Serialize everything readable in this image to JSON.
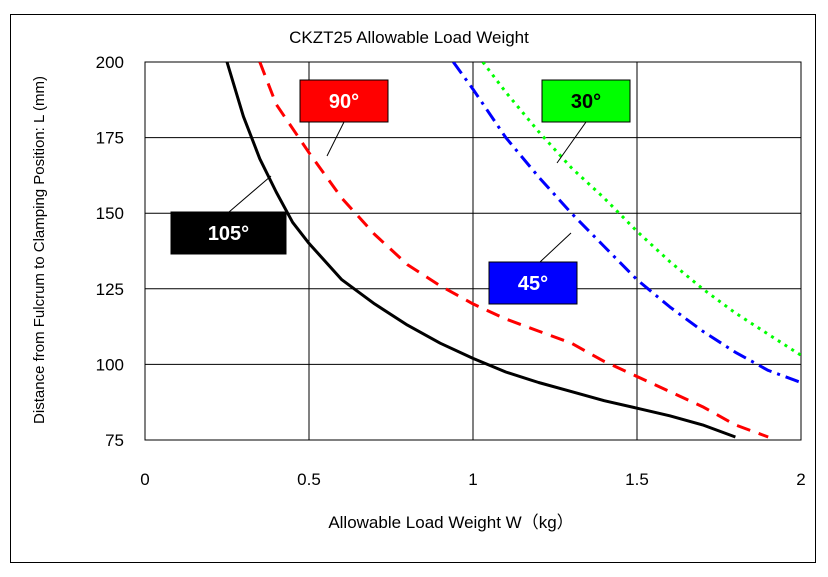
{
  "chart_data": {
    "type": "line",
    "title": "CKZT25  Allowable Load Weight",
    "xlabel": "Allowable Load Weight  W（kg）",
    "ylabel": "Distance from Fulcrum to Clamping Position: L (mm)",
    "xlim": [
      0,
      2
    ],
    "ylim": [
      75,
      200
    ],
    "x_ticks": [
      "0",
      "0.5",
      "1",
      "1.5",
      "2"
    ],
    "y_ticks": [
      "75",
      "100",
      "125",
      "150",
      "175",
      "200"
    ],
    "grid": true,
    "series": [
      {
        "name": "105°",
        "color": "#000000",
        "style": "solid",
        "label_bg": "#000000",
        "label_fg": "#ffffff",
        "points": [
          [
            0.25,
            200
          ],
          [
            0.3,
            182
          ],
          [
            0.35,
            168
          ],
          [
            0.4,
            157
          ],
          [
            0.45,
            147
          ],
          [
            0.5,
            140
          ],
          [
            0.6,
            128
          ],
          [
            0.7,
            120
          ],
          [
            0.8,
            113
          ],
          [
            0.9,
            107
          ],
          [
            1.0,
            102
          ],
          [
            1.1,
            97.5
          ],
          [
            1.2,
            94
          ],
          [
            1.3,
            91
          ],
          [
            1.4,
            88
          ],
          [
            1.5,
            85.5
          ],
          [
            1.6,
            83
          ],
          [
            1.7,
            80
          ],
          [
            1.8,
            76
          ]
        ]
      },
      {
        "name": "90°",
        "color": "#ff0000",
        "style": "dashed",
        "label_bg": "#ff0000",
        "label_fg": "#ffffff",
        "points": [
          [
            0.35,
            200
          ],
          [
            0.4,
            186
          ],
          [
            0.5,
            170
          ],
          [
            0.6,
            155
          ],
          [
            0.7,
            143
          ],
          [
            0.8,
            133
          ],
          [
            0.9,
            126
          ],
          [
            1.0,
            120
          ],
          [
            1.1,
            115
          ],
          [
            1.2,
            111
          ],
          [
            1.3,
            107
          ],
          [
            1.4,
            101
          ],
          [
            1.5,
            96
          ],
          [
            1.6,
            91
          ],
          [
            1.7,
            86
          ],
          [
            1.8,
            80
          ],
          [
            1.9,
            76
          ]
        ]
      },
      {
        "name": "45°",
        "color": "#0000ff",
        "style": "dashdot",
        "label_bg": "#0000ff",
        "label_fg": "#ffffff",
        "points": [
          [
            0.94,
            200
          ],
          [
            1.0,
            191
          ],
          [
            1.1,
            175
          ],
          [
            1.2,
            162
          ],
          [
            1.3,
            150
          ],
          [
            1.4,
            139
          ],
          [
            1.5,
            128
          ],
          [
            1.6,
            119
          ],
          [
            1.7,
            111
          ],
          [
            1.8,
            104
          ],
          [
            1.9,
            98
          ],
          [
            2.0,
            94
          ]
        ]
      },
      {
        "name": "30°",
        "color": "#00ff00",
        "style": "dotted",
        "label_bg": "#00ff00",
        "label_fg": "#000000",
        "points": [
          [
            1.03,
            200
          ],
          [
            1.1,
            190
          ],
          [
            1.2,
            177
          ],
          [
            1.3,
            165
          ],
          [
            1.4,
            155
          ],
          [
            1.5,
            144
          ],
          [
            1.6,
            134
          ],
          [
            1.7,
            125
          ],
          [
            1.8,
            117
          ],
          [
            1.9,
            110
          ],
          [
            2.0,
            103
          ]
        ]
      }
    ]
  }
}
